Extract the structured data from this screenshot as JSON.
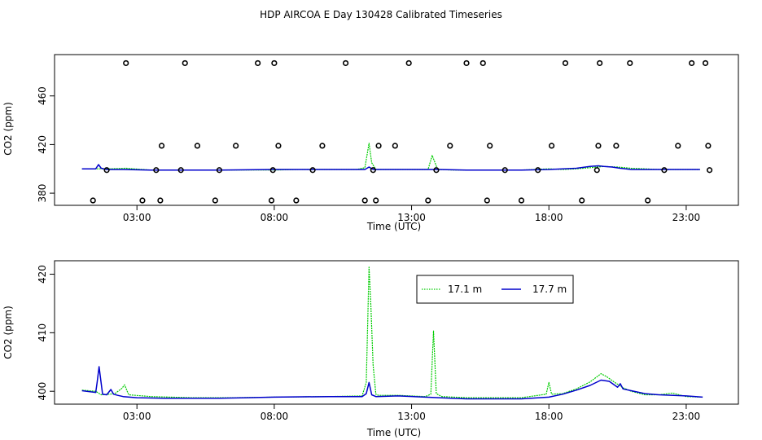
{
  "title": "HDP AIRCOA E  Day 130428  Calibrated Timeseries",
  "chart_data": [
    {
      "type": "line",
      "xlabel": "Time (UTC)",
      "ylabel": "CO2 (ppm)",
      "x_ticks": [
        "03:00",
        "08:00",
        "13:00",
        "18:00",
        "23:00"
      ],
      "x_tick_hours": [
        3,
        8,
        13,
        18,
        23
      ],
      "y_ticks": [
        380,
        420,
        460
      ],
      "xlim": [
        0.0,
        24.9
      ],
      "ylim": [
        370,
        494
      ],
      "colors": {
        "green": "#00cc00",
        "blue": "#0000cc",
        "circles": "#000000"
      },
      "series": [
        {
          "x": [
            1.0,
            2.0,
            2.6,
            3.5,
            4.0,
            6.0,
            8.0,
            9.0,
            10.0,
            11.0,
            11.3,
            11.45,
            11.55,
            11.7,
            12.0,
            13.0,
            13.6,
            13.75,
            13.95,
            14.5,
            15.0,
            16.0,
            17.0,
            18.0,
            18.5,
            19.0,
            19.5,
            20.0,
            20.5,
            21.0,
            22.0,
            23.0,
            23.5
          ],
          "y": [
            400,
            400,
            400.5,
            399,
            399,
            399,
            399,
            399.5,
            399.5,
            399.5,
            401,
            421,
            405,
            399.5,
            399.5,
            399.5,
            399.5,
            411,
            399.5,
            399,
            399,
            399,
            399,
            400,
            399.5,
            400,
            401,
            402,
            401.5,
            400.5,
            399.5,
            399.5,
            399.5
          ]
        },
        {
          "x": [
            1.0,
            1.5,
            1.6,
            1.7,
            1.9,
            2.5,
            3.5,
            6.0,
            8.0,
            10.0,
            11.3,
            11.45,
            11.6,
            13.0,
            14.0,
            15.0,
            16.0,
            17.0,
            18.0,
            18.5,
            19.0,
            19.5,
            19.8,
            20.0,
            20.3,
            20.6,
            21.0,
            22.0,
            23.0,
            23.5
          ],
          "y": [
            400,
            400,
            403.5,
            400.5,
            399.5,
            399.5,
            399,
            399,
            399.5,
            399.5,
            399.5,
            401.5,
            399.5,
            399.5,
            399.5,
            399,
            399,
            399,
            399.5,
            400,
            400.5,
            402,
            402.5,
            402,
            401.5,
            400.5,
            399.5,
            399.5,
            399.5,
            399.5
          ]
        },
        {
          "type": "scatter",
          "x": [
            1.4,
            1.9,
            2.6,
            3.2,
            3.7,
            3.85,
            3.9,
            4.6,
            4.75,
            5.2,
            5.85,
            6.0,
            6.6,
            7.4,
            7.9,
            7.95,
            8.0,
            8.15,
            8.8,
            9.4,
            9.75,
            10.6,
            11.3,
            11.6,
            11.7,
            11.8,
            12.4,
            12.9,
            13.6,
            13.9,
            14.4,
            15.0,
            15.6,
            15.75,
            15.85,
            16.4,
            17.0,
            17.6,
            18.1,
            18.6,
            19.2,
            19.75,
            19.8,
            19.85,
            20.45,
            20.95,
            21.6,
            22.2,
            22.7,
            23.2,
            23.7,
            23.8,
            23.85
          ],
          "y": [
            374,
            399,
            487,
            374,
            399,
            374,
            419,
            399,
            487,
            419,
            374,
            399,
            419,
            487,
            374,
            399,
            487,
            419,
            374,
            399,
            419,
            487,
            374,
            399,
            374,
            419,
            419,
            487,
            374,
            399,
            419,
            487,
            487,
            374,
            419,
            399,
            374,
            399,
            419,
            487,
            374,
            399,
            419,
            487,
            419,
            487,
            374,
            399,
            419,
            487,
            487,
            419,
            399
          ]
        }
      ]
    },
    {
      "type": "line",
      "xlabel": "Time (UTC)",
      "ylabel": "CO2 (ppm)",
      "x_ticks": [
        "03:00",
        "08:00",
        "13:00",
        "18:00",
        "23:00"
      ],
      "x_tick_hours": [
        3,
        8,
        13,
        18,
        23
      ],
      "y_ticks": [
        400,
        410,
        420
      ],
      "xlim": [
        0.0,
        24.9
      ],
      "ylim": [
        397.8,
        422.3
      ],
      "legend_placement": "top-center",
      "colors": {
        "green": "#00cc00",
        "blue": "#0000cc"
      },
      "series": [
        {
          "name": "17.1 m",
          "x": [
            1.0,
            1.5,
            1.7,
            2.0,
            2.2,
            2.45,
            2.55,
            2.7,
            3.5,
            5.0,
            6.5,
            8.0,
            10.0,
            11.2,
            11.35,
            11.45,
            11.52,
            11.6,
            11.7,
            11.8,
            12.5,
            13.5,
            13.7,
            13.8,
            13.9,
            14.1,
            15.0,
            16.0,
            17.0,
            17.9,
            18.0,
            18.1,
            18.5,
            19.0,
            19.5,
            19.9,
            20.1,
            20.4,
            20.7,
            21.0,
            21.5,
            22.0,
            22.5,
            23.0,
            23.6
          ],
          "y": [
            400.2,
            400.0,
            399.4,
            399.5,
            399.6,
            400.5,
            401.1,
            399.4,
            399.1,
            398.9,
            398.9,
            399.0,
            399.1,
            399.2,
            401.5,
            421.2,
            414.5,
            404.5,
            399.5,
            399.3,
            399.3,
            399.1,
            399.5,
            410.3,
            399.6,
            399.1,
            398.9,
            398.9,
            398.9,
            399.5,
            401.5,
            399.5,
            399.6,
            400.4,
            401.6,
            403.0,
            402.5,
            401.5,
            400.6,
            400.0,
            399.4,
            399.4,
            399.7,
            399.1,
            399.0
          ]
        },
        {
          "name": "17.7 m",
          "x": [
            1.0,
            1.5,
            1.55,
            1.62,
            1.68,
            1.75,
            1.9,
            2.05,
            2.15,
            2.3,
            2.5,
            3.0,
            4.0,
            5.0,
            6.0,
            7.0,
            8.0,
            10.0,
            11.2,
            11.35,
            11.45,
            11.55,
            11.7,
            12.5,
            13.5,
            14.0,
            15.0,
            16.0,
            17.0,
            18.0,
            18.5,
            19.0,
            19.5,
            19.9,
            20.2,
            20.5,
            20.6,
            20.7,
            21.0,
            21.5,
            22.0,
            23.0,
            23.6
          ],
          "y": [
            400.1,
            399.8,
            401.5,
            404.2,
            402.0,
            399.5,
            399.4,
            400.3,
            399.5,
            399.3,
            399.1,
            398.9,
            398.8,
            398.8,
            398.8,
            398.9,
            399.0,
            399.1,
            399.1,
            399.6,
            401.5,
            399.4,
            399.1,
            399.2,
            399.0,
            398.9,
            398.7,
            398.7,
            398.7,
            399.0,
            399.5,
            400.2,
            401.0,
            401.9,
            401.7,
            400.7,
            401.3,
            400.4,
            400.1,
            399.6,
            399.4,
            399.2,
            399.0
          ]
        }
      ]
    }
  ]
}
